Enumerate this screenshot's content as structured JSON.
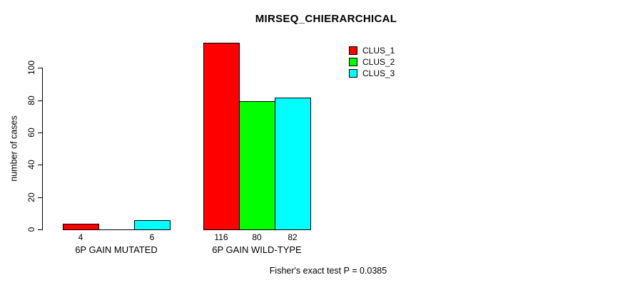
{
  "title": "MIRSEQ_CHIERARCHICAL",
  "footer_note": "Fisher's exact test P = 0.0385",
  "colors": {
    "clus_1": "#ff0000",
    "clus_2": "#00ff00",
    "clus_3": "#00ffff",
    "axis": "#000000",
    "background": "#ffffff"
  },
  "legend": {
    "position": "top-right",
    "entries": [
      {
        "label": "CLUS_1",
        "color": "#ff0000"
      },
      {
        "label": "CLUS_2",
        "color": "#00ff00"
      },
      {
        "label": "CLUS_3",
        "color": "#00ffff"
      }
    ]
  },
  "chart_data": {
    "type": "bar",
    "title": "MIRSEQ_CHIERARCHICAL",
    "xlabel": "",
    "ylabel": "number of cases",
    "categories": [
      "6P GAIN MUTATED",
      "6P GAIN WILD-TYPE"
    ],
    "series": [
      {
        "name": "CLUS_1",
        "color": "#ff0000",
        "values": [
          4,
          116
        ]
      },
      {
        "name": "CLUS_2",
        "color": "#00ff00",
        "values": [
          0,
          80
        ]
      },
      {
        "name": "CLUS_3",
        "color": "#00ffff",
        "values": [
          6,
          82
        ]
      }
    ],
    "bar_value_labels": [
      [
        "4",
        "",
        "6"
      ],
      [
        "116",
        "80",
        "82"
      ]
    ],
    "yticks": [
      0,
      20,
      40,
      60,
      80,
      100
    ],
    "ylim": [
      0,
      120
    ],
    "grid": false,
    "legend_position": "top-right",
    "annotation": "Fisher's exact test P = 0.0385"
  }
}
